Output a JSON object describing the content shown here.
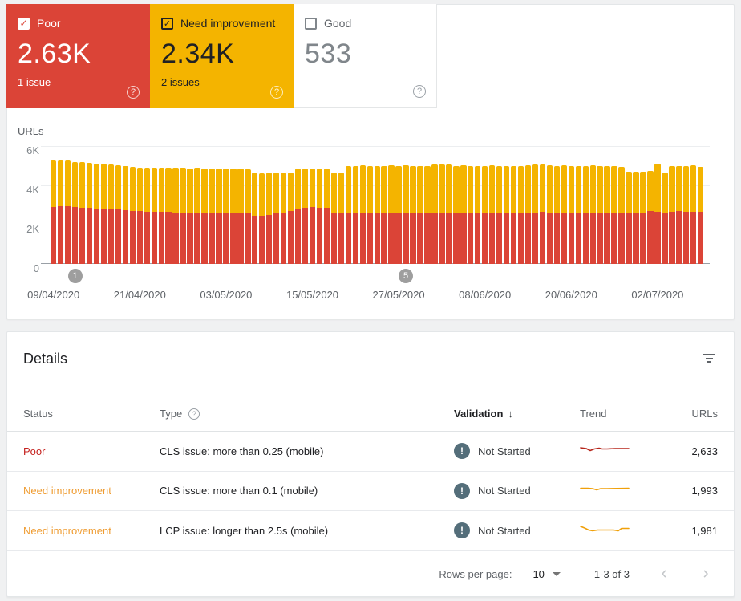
{
  "cards": [
    {
      "label": "Poor",
      "value": "2.63K",
      "sub": "1 issue",
      "checked": true,
      "color": "#db4437"
    },
    {
      "label": "Need improvement",
      "value": "2.34K",
      "sub": "2 issues",
      "checked": true,
      "color": "#f4b400"
    },
    {
      "label": "Good",
      "value": "533",
      "sub": "",
      "checked": false,
      "color": "#ffffff"
    }
  ],
  "chart_data": {
    "type": "bar",
    "stacked": true,
    "ylabel": "URLs",
    "ylim": [
      0,
      6000
    ],
    "y_ticks": [
      "6K",
      "4K",
      "2K",
      "0"
    ],
    "grid": true,
    "x_labels": [
      "09/04/2020",
      "21/04/2020",
      "03/05/2020",
      "15/05/2020",
      "27/05/2020",
      "08/06/2020",
      "20/06/2020",
      "02/07/2020"
    ],
    "x_label_indices": [
      0,
      12,
      24,
      36,
      48,
      60,
      72,
      84
    ],
    "markers": [
      {
        "label": "1",
        "index": 3
      },
      {
        "label": "5",
        "index": 49
      }
    ],
    "series": [
      {
        "name": "Poor",
        "color": "#db4437",
        "values": [
          2900,
          2950,
          2920,
          2880,
          2860,
          2850,
          2830,
          2810,
          2800,
          2760,
          2730,
          2710,
          2690,
          2670,
          2670,
          2650,
          2640,
          2620,
          2630,
          2610,
          2620,
          2600,
          2590,
          2600,
          2560,
          2570,
          2580,
          2560,
          2460,
          2440,
          2470,
          2560,
          2620,
          2700,
          2780,
          2850,
          2880,
          2870,
          2860,
          2600,
          2580,
          2600,
          2610,
          2600,
          2590,
          2600,
          2610,
          2600,
          2600,
          2610,
          2600,
          2590,
          2600,
          2620,
          2630,
          2620,
          2600,
          2610,
          2600,
          2590,
          2600,
          2610,
          2600,
          2600,
          2590,
          2600,
          2610,
          2630,
          2640,
          2620,
          2600,
          2610,
          2600,
          2590,
          2600,
          2610,
          2600,
          2590,
          2600,
          2600,
          2600,
          2590,
          2600,
          2700,
          2650,
          2600,
          2650,
          2700,
          2660,
          2650,
          2650
        ]
      },
      {
        "name": "Need improvement",
        "color": "#f4b400",
        "values": [
          2350,
          2330,
          2330,
          2320,
          2310,
          2290,
          2280,
          2280,
          2260,
          2250,
          2240,
          2240,
          2210,
          2220,
          2230,
          2230,
          2250,
          2280,
          2260,
          2260,
          2260,
          2260,
          2260,
          2240,
          2290,
          2300,
          2280,
          2270,
          2190,
          2190,
          2180,
          2090,
          2040,
          1950,
          2070,
          2010,
          1970,
          1970,
          1990,
          2050,
          2080,
          2380,
          2390,
          2410,
          2410,
          2390,
          2390,
          2410,
          2400,
          2400,
          2400,
          2400,
          2400,
          2430,
          2430,
          2430,
          2400,
          2400,
          2400,
          2400,
          2400,
          2400,
          2400,
          2400,
          2400,
          2400,
          2400,
          2420,
          2420,
          2420,
          2400,
          2400,
          2400,
          2400,
          2400,
          2400,
          2400,
          2400,
          2400,
          2350,
          2100,
          2090,
          2100,
          2020,
          2450,
          2050,
          2330,
          2300,
          2330,
          2360,
          2300
        ]
      }
    ]
  },
  "details": {
    "title": "Details",
    "columns": {
      "status": "Status",
      "type": "Type",
      "validation": "Validation",
      "trend": "Trend",
      "urls": "URLs"
    },
    "sort_arrow": "↓",
    "rows": [
      {
        "status": "Poor",
        "status_color": "#c5221f",
        "type": "CLS issue: more than 0.25 (mobile)",
        "validation": "Not Started",
        "urls": "2,633",
        "trend_color": "#b7261b",
        "trend_points": [
          [
            1,
            5
          ],
          [
            8,
            6
          ],
          [
            13,
            8.5
          ],
          [
            18,
            6.5
          ],
          [
            24,
            5.5
          ],
          [
            28,
            6.5
          ],
          [
            34,
            6.5
          ],
          [
            44,
            6
          ],
          [
            61,
            6
          ]
        ]
      },
      {
        "status": "Need improvement",
        "status_color": "#ef9c32",
        "type": "CLS issue: more than 0.1 (mobile)",
        "validation": "Not Started",
        "urls": "1,993",
        "trend_color": "#f0a00a",
        "trend_points": [
          [
            1,
            6.5
          ],
          [
            10,
            6.5
          ],
          [
            16,
            7
          ],
          [
            21,
            8.5
          ],
          [
            26,
            7
          ],
          [
            34,
            7
          ],
          [
            61,
            6.5
          ]
        ]
      },
      {
        "status": "Need improvement",
        "status_color": "#ef9c32",
        "type": "LCP issue: longer than 2.5s (mobile)",
        "validation": "Not Started",
        "urls": "1,981",
        "trend_color": "#f0a00a",
        "trend_points": [
          [
            1,
            4
          ],
          [
            6,
            6
          ],
          [
            11,
            8.5
          ],
          [
            16,
            9.5
          ],
          [
            22,
            8.5
          ],
          [
            30,
            8.5
          ],
          [
            42,
            8.5
          ],
          [
            48,
            9.5
          ],
          [
            52,
            6.5
          ],
          [
            61,
            6.5
          ]
        ]
      }
    ],
    "pagination": {
      "rows_per_page_label": "Rows per page:",
      "rows_per_page": "10",
      "range": "1-3 of 3"
    }
  }
}
